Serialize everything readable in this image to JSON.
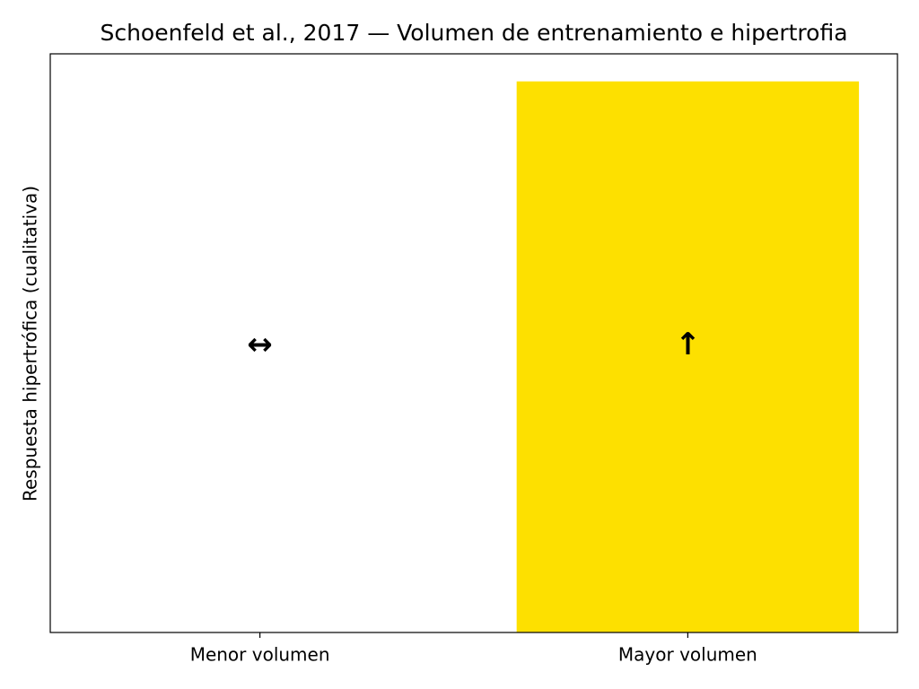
{
  "chart_data": {
    "type": "bar",
    "title": "Schoenfeld et al., 2017 — Volumen de entrenamiento e hipertrofia",
    "ylabel": "Respuesta hipertrófica (cualitativa)",
    "categories": [
      "Menor volumen",
      "Mayor volumen"
    ],
    "values": [
      0,
      1
    ],
    "annotations": [
      "↔",
      "↑"
    ],
    "color": "#fde000",
    "ylim": [
      0,
      1.05
    ]
  }
}
